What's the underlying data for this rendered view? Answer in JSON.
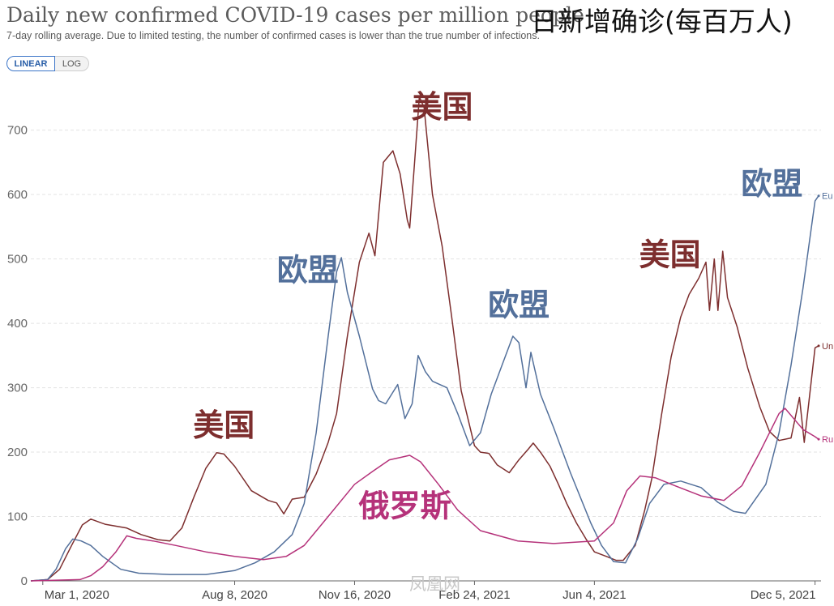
{
  "header": {
    "title": "Daily new confirmed COVID-19 cases per million people",
    "title_cn": "日新增确诊(每百万人)",
    "subtitle": "7-day rolling average. Due to limited testing, the number of confirmed cases is lower than the true number of infections."
  },
  "toggles": {
    "linear": "LINEAR",
    "log": "LOG",
    "selected": "LINEAR"
  },
  "watermark": "凤凰网",
  "colors": {
    "usa": "#7d2e2e",
    "eu": "#53709b",
    "russia": "#b5327a",
    "grid": "#e3e3e3",
    "axis": "#666666"
  },
  "chart_data": {
    "type": "line",
    "title": "Daily new confirmed COVID-19 cases per million people",
    "subtitle": "7-day rolling average. Due to limited testing, the number of confirmed cases is lower than the true number of infections.",
    "scale": "linear",
    "grid": true,
    "x_ticks": [
      "Mar 1, 2020",
      "Aug 8, 2020",
      "Nov 16, 2020",
      "Feb 24, 2021",
      "Jun 4, 2021",
      "Dec 5, 2021"
    ],
    "x_tick_dates": [
      "2020-03-01",
      "2020-08-08",
      "2020-11-16",
      "2021-02-24",
      "2021-06-04",
      "2021-12-05"
    ],
    "xlim": [
      "2020-02-20",
      "2021-12-10"
    ],
    "y_ticks": [
      0,
      100,
      200,
      300,
      400,
      500,
      600,
      700
    ],
    "ylim": [
      0,
      760
    ],
    "series": [
      {
        "name": "United States",
        "end_label": "Un",
        "color_key": "usa",
        "points": [
          [
            "2020-02-20",
            0
          ],
          [
            "2020-03-05",
            2
          ],
          [
            "2020-03-15",
            18
          ],
          [
            "2020-03-25",
            55
          ],
          [
            "2020-04-03",
            87
          ],
          [
            "2020-04-10",
            96
          ],
          [
            "2020-04-22",
            88
          ],
          [
            "2020-05-10",
            82
          ],
          [
            "2020-05-22",
            72
          ],
          [
            "2020-06-05",
            64
          ],
          [
            "2020-06-15",
            62
          ],
          [
            "2020-06-25",
            82
          ],
          [
            "2020-07-05",
            130
          ],
          [
            "2020-07-15",
            175
          ],
          [
            "2020-07-24",
            199
          ],
          [
            "2020-07-30",
            197
          ],
          [
            "2020-08-08",
            178
          ],
          [
            "2020-08-22",
            140
          ],
          [
            "2020-09-05",
            125
          ],
          [
            "2020-09-12",
            121
          ],
          [
            "2020-09-18",
            104
          ],
          [
            "2020-09-25",
            127
          ],
          [
            "2020-10-05",
            130
          ],
          [
            "2020-10-15",
            166
          ],
          [
            "2020-10-25",
            215
          ],
          [
            "2020-11-01",
            260
          ],
          [
            "2020-11-10",
            380
          ],
          [
            "2020-11-20",
            495
          ],
          [
            "2020-11-28",
            540
          ],
          [
            "2020-12-03",
            505
          ],
          [
            "2020-12-10",
            650
          ],
          [
            "2020-12-18",
            668
          ],
          [
            "2020-12-24",
            632
          ],
          [
            "2020-12-30",
            560
          ],
          [
            "2021-01-01",
            548
          ],
          [
            "2021-01-05",
            648
          ],
          [
            "2021-01-09",
            752
          ],
          [
            "2021-01-13",
            735
          ],
          [
            "2021-01-20",
            600
          ],
          [
            "2021-01-28",
            520
          ],
          [
            "2021-02-05",
            410
          ],
          [
            "2021-02-13",
            295
          ],
          [
            "2021-02-24",
            210
          ],
          [
            "2021-03-01",
            200
          ],
          [
            "2021-03-08",
            198
          ],
          [
            "2021-03-15",
            180
          ],
          [
            "2021-03-25",
            168
          ],
          [
            "2021-04-02",
            188
          ],
          [
            "2021-04-10",
            205
          ],
          [
            "2021-04-14",
            214
          ],
          [
            "2021-04-20",
            200
          ],
          [
            "2021-04-28",
            178
          ],
          [
            "2021-05-05",
            150
          ],
          [
            "2021-05-12",
            120
          ],
          [
            "2021-05-20",
            90
          ],
          [
            "2021-05-28",
            65
          ],
          [
            "2021-06-04",
            45
          ],
          [
            "2021-06-14",
            38
          ],
          [
            "2021-06-22",
            32
          ],
          [
            "2021-06-28",
            32
          ],
          [
            "2021-07-08",
            55
          ],
          [
            "2021-07-16",
            110
          ],
          [
            "2021-07-22",
            160
          ],
          [
            "2021-07-30",
            258
          ],
          [
            "2021-08-07",
            348
          ],
          [
            "2021-08-15",
            410
          ],
          [
            "2021-08-22",
            445
          ],
          [
            "2021-08-30",
            470
          ],
          [
            "2021-09-05",
            495
          ],
          [
            "2021-09-08",
            420
          ],
          [
            "2021-09-12",
            500
          ],
          [
            "2021-09-15",
            420
          ],
          [
            "2021-09-19",
            512
          ],
          [
            "2021-09-23",
            440
          ],
          [
            "2021-10-01",
            395
          ],
          [
            "2021-10-10",
            330
          ],
          [
            "2021-10-20",
            270
          ],
          [
            "2021-10-28",
            232
          ],
          [
            "2021-11-05",
            218
          ],
          [
            "2021-11-15",
            222
          ],
          [
            "2021-11-22",
            285
          ],
          [
            "2021-11-26",
            215
          ],
          [
            "2021-11-30",
            280
          ],
          [
            "2021-12-05",
            362
          ],
          [
            "2021-12-08",
            365
          ]
        ]
      },
      {
        "name": "European Union",
        "end_label": "Eu",
        "color_key": "eu",
        "points": [
          [
            "2020-02-20",
            0
          ],
          [
            "2020-03-05",
            2
          ],
          [
            "2020-03-12",
            18
          ],
          [
            "2020-03-20",
            50
          ],
          [
            "2020-03-26",
            65
          ],
          [
            "2020-04-02",
            62
          ],
          [
            "2020-04-10",
            55
          ],
          [
            "2020-04-20",
            38
          ],
          [
            "2020-05-05",
            18
          ],
          [
            "2020-05-20",
            12
          ],
          [
            "2020-06-15",
            10
          ],
          [
            "2020-07-15",
            10
          ],
          [
            "2020-08-08",
            16
          ],
          [
            "2020-08-25",
            28
          ],
          [
            "2020-09-10",
            45
          ],
          [
            "2020-09-25",
            72
          ],
          [
            "2020-10-05",
            120
          ],
          [
            "2020-10-15",
            230
          ],
          [
            "2020-10-25",
            380
          ],
          [
            "2020-11-01",
            480
          ],
          [
            "2020-11-05",
            502
          ],
          [
            "2020-11-10",
            448
          ],
          [
            "2020-11-20",
            380
          ],
          [
            "2020-12-01",
            298
          ],
          [
            "2020-12-06",
            280
          ],
          [
            "2020-12-12",
            275
          ],
          [
            "2020-12-22",
            305
          ],
          [
            "2020-12-28",
            252
          ],
          [
            "2021-01-03",
            275
          ],
          [
            "2021-01-08",
            350
          ],
          [
            "2021-01-14",
            325
          ],
          [
            "2021-01-20",
            310
          ],
          [
            "2021-02-01",
            300
          ],
          [
            "2021-02-10",
            260
          ],
          [
            "2021-02-20",
            210
          ],
          [
            "2021-03-01",
            230
          ],
          [
            "2021-03-10",
            290
          ],
          [
            "2021-03-20",
            340
          ],
          [
            "2021-03-28",
            380
          ],
          [
            "2021-04-02",
            370
          ],
          [
            "2021-04-08",
            300
          ],
          [
            "2021-04-12",
            355
          ],
          [
            "2021-04-20",
            290
          ],
          [
            "2021-05-01",
            238
          ],
          [
            "2021-05-15",
            168
          ],
          [
            "2021-06-01",
            90
          ],
          [
            "2021-06-10",
            55
          ],
          [
            "2021-06-20",
            30
          ],
          [
            "2021-06-30",
            28
          ],
          [
            "2021-07-10",
            65
          ],
          [
            "2021-07-20",
            120
          ],
          [
            "2021-08-01",
            150
          ],
          [
            "2021-08-15",
            155
          ],
          [
            "2021-09-01",
            145
          ],
          [
            "2021-09-15",
            122
          ],
          [
            "2021-09-28",
            108
          ],
          [
            "2021-10-08",
            105
          ],
          [
            "2021-10-25",
            150
          ],
          [
            "2021-11-05",
            230
          ],
          [
            "2021-11-15",
            335
          ],
          [
            "2021-11-25",
            455
          ],
          [
            "2021-12-05",
            590
          ],
          [
            "2021-12-08",
            598
          ]
        ]
      },
      {
        "name": "Russia",
        "end_label": "Ru",
        "color_key": "russia",
        "points": [
          [
            "2020-02-20",
            0
          ],
          [
            "2020-04-01",
            2
          ],
          [
            "2020-04-10",
            8
          ],
          [
            "2020-04-20",
            22
          ],
          [
            "2020-05-01",
            45
          ],
          [
            "2020-05-10",
            70
          ],
          [
            "2020-05-18",
            66
          ],
          [
            "2020-06-01",
            62
          ],
          [
            "2020-06-20",
            55
          ],
          [
            "2020-07-15",
            45
          ],
          [
            "2020-08-08",
            38
          ],
          [
            "2020-09-01",
            33
          ],
          [
            "2020-09-20",
            38
          ],
          [
            "2020-10-05",
            55
          ],
          [
            "2020-10-25",
            100
          ],
          [
            "2020-11-16",
            150
          ],
          [
            "2020-12-01",
            170
          ],
          [
            "2020-12-15",
            188
          ],
          [
            "2020-12-25",
            192
          ],
          [
            "2021-01-01",
            195
          ],
          [
            "2021-01-10",
            185
          ],
          [
            "2021-01-25",
            150
          ],
          [
            "2021-02-10",
            110
          ],
          [
            "2021-03-01",
            78
          ],
          [
            "2021-04-01",
            62
          ],
          [
            "2021-05-01",
            58
          ],
          [
            "2021-06-04",
            62
          ],
          [
            "2021-06-20",
            90
          ],
          [
            "2021-07-01",
            140
          ],
          [
            "2021-07-12",
            163
          ],
          [
            "2021-07-25",
            160
          ],
          [
            "2021-08-10",
            148
          ],
          [
            "2021-09-01",
            132
          ],
          [
            "2021-09-20",
            125
          ],
          [
            "2021-10-05",
            148
          ],
          [
            "2021-10-20",
            200
          ],
          [
            "2021-11-05",
            260
          ],
          [
            "2021-11-10",
            268
          ],
          [
            "2021-11-25",
            235
          ],
          [
            "2021-12-05",
            224
          ],
          [
            "2021-12-08",
            220
          ]
        ]
      }
    ],
    "annotations": [
      {
        "text": "美国",
        "color_key": "usa",
        "date": "2020-07-30",
        "value": 225
      },
      {
        "text": "欧盟",
        "color_key": "eu",
        "date": "2020-10-08",
        "value": 466
      },
      {
        "text": "美国",
        "color_key": "usa",
        "date": "2021-01-28",
        "value": 720
      },
      {
        "text": "欧盟",
        "color_key": "eu",
        "date": "2021-04-02",
        "value": 412
      },
      {
        "text": "俄罗斯",
        "color_key": "russia",
        "date": "2020-12-28",
        "value": 100
      },
      {
        "text": "美国",
        "color_key": "usa",
        "date": "2021-08-06",
        "value": 490
      },
      {
        "text": "欧盟",
        "color_key": "eu",
        "date": "2021-10-30",
        "value": 600
      }
    ]
  }
}
